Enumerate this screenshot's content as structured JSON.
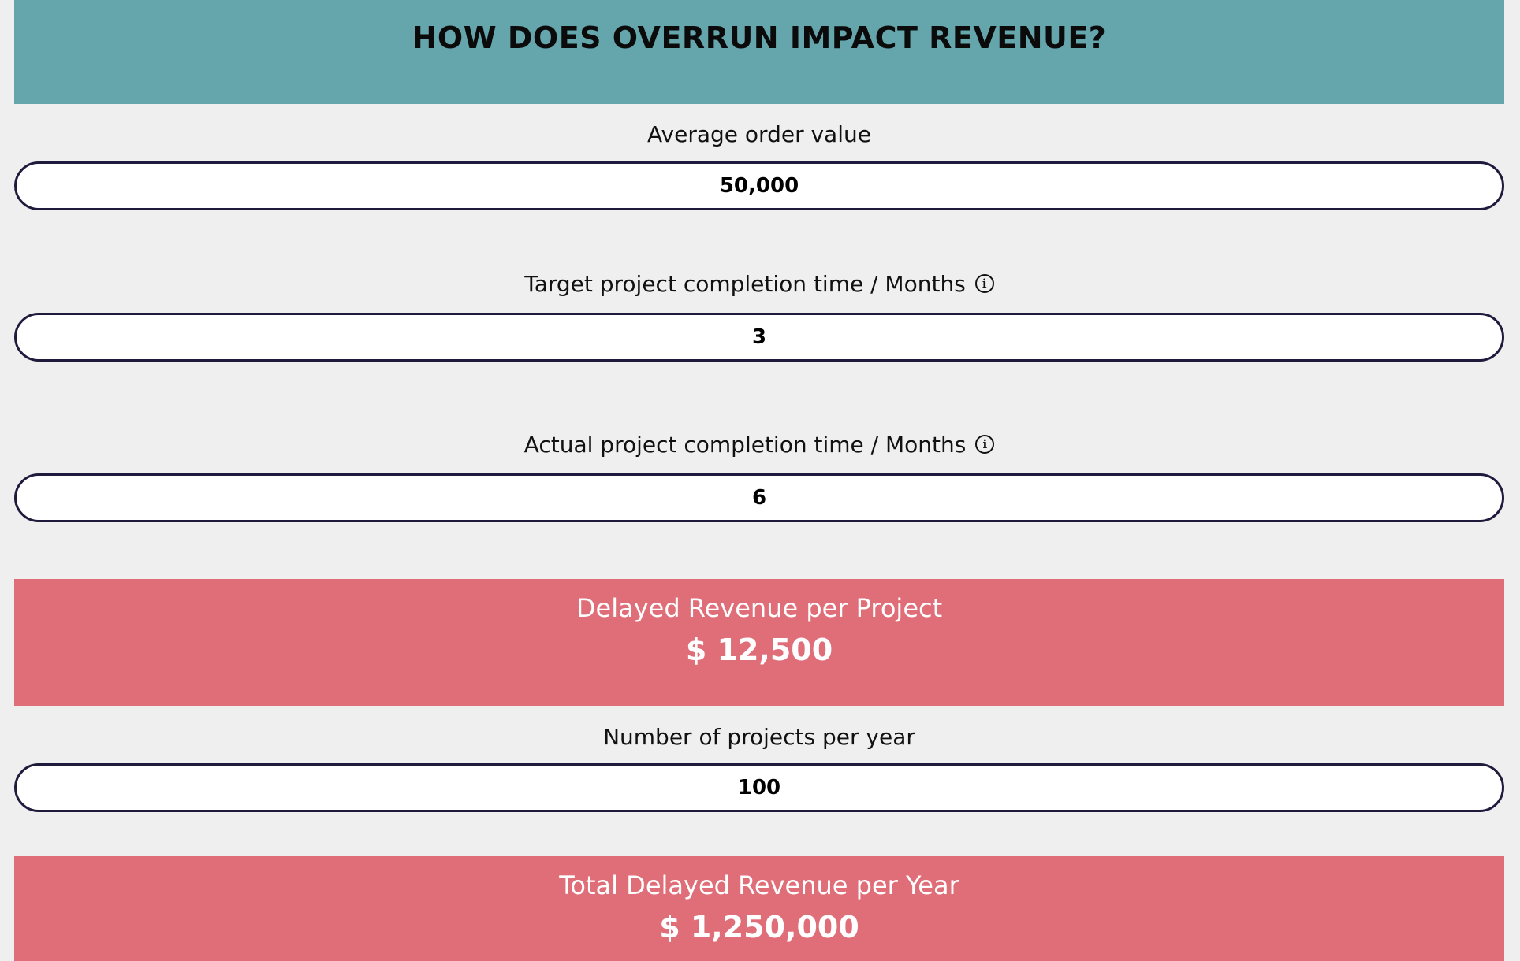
{
  "title": "HOW DOES OVERRUN IMPACT REVENUE?",
  "fields": {
    "average_order_value": {
      "label": "Average order value",
      "value": "50,000"
    },
    "target_completion": {
      "label": "Target project completion time / Months",
      "value": "3"
    },
    "actual_completion": {
      "label": "Actual project completion time / Months",
      "value": "6"
    },
    "projects_per_year": {
      "label": "Number of projects per year",
      "value": "100"
    }
  },
  "results": {
    "delayed_per_project": {
      "label": "Delayed Revenue per Project",
      "value": "$ 12,500"
    },
    "total_per_year": {
      "label": "Total Delayed Revenue per Year",
      "value": "$ 1,250,000"
    }
  },
  "icons": {
    "info": "info-circle"
  },
  "colors": {
    "header_bg": "#65a6ac",
    "result_bg": "#e06e78",
    "page_bg": "#efefef",
    "input_border": "#1e1b3d"
  }
}
